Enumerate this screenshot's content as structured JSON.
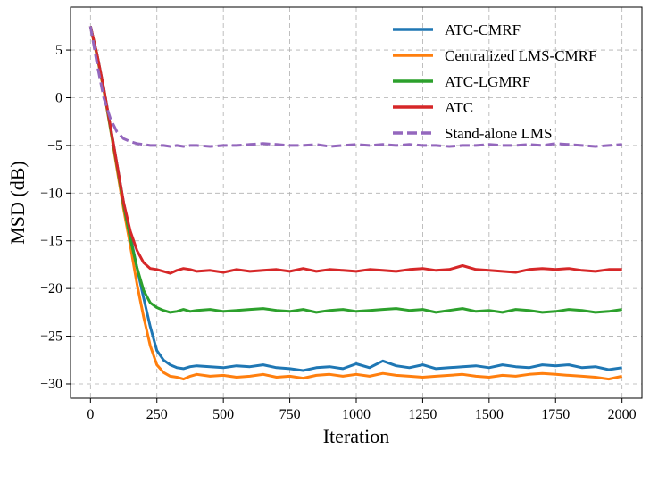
{
  "chart_data": {
    "type": "line",
    "title": "",
    "xlabel": "Iteration",
    "ylabel": "MSD (dB)",
    "xlim": [
      -75,
      2075
    ],
    "ylim": [
      -31.5,
      9.5
    ],
    "xticks": [
      0,
      250,
      500,
      750,
      1000,
      1250,
      1500,
      1750,
      2000
    ],
    "yticks": [
      5,
      0,
      -5,
      -10,
      -15,
      -20,
      -25,
      -30
    ],
    "ytick_labels": [
      "5",
      "0",
      "−5",
      "−10",
      "−15",
      "−20",
      "−25",
      "−30"
    ],
    "grid": true,
    "legend_position": "top-right",
    "series": [
      {
        "name": "ATC-CMRF",
        "color": "#1f77b4",
        "dashed": false,
        "x": [
          0,
          25,
          50,
          75,
          100,
          125,
          150,
          175,
          200,
          225,
          250,
          275,
          300,
          325,
          350,
          375,
          400,
          450,
          500,
          550,
          600,
          650,
          700,
          750,
          800,
          850,
          900,
          950,
          1000,
          1050,
          1100,
          1150,
          1200,
          1250,
          1300,
          1350,
          1400,
          1450,
          1500,
          1550,
          1600,
          1650,
          1700,
          1750,
          1800,
          1850,
          1900,
          1950,
          2000
        ],
        "y": [
          7.5,
          4.5,
          1.0,
          -3.0,
          -7.0,
          -11.0,
          -14.5,
          -17.8,
          -21.0,
          -24.0,
          -26.5,
          -27.5,
          -28.0,
          -28.3,
          -28.4,
          -28.2,
          -28.1,
          -28.2,
          -28.3,
          -28.1,
          -28.2,
          -28.0,
          -28.3,
          -28.4,
          -28.6,
          -28.3,
          -28.2,
          -28.4,
          -27.9,
          -28.3,
          -27.6,
          -28.1,
          -28.3,
          -28.0,
          -28.4,
          -28.3,
          -28.2,
          -28.1,
          -28.3,
          -28.0,
          -28.2,
          -28.3,
          -28.0,
          -28.1,
          -28.0,
          -28.3,
          -28.2,
          -28.5,
          -28.3
        ]
      },
      {
        "name": "Centralized LMS-CMRF",
        "color": "#ff7f0e",
        "dashed": false,
        "x": [
          0,
          25,
          50,
          75,
          100,
          125,
          150,
          175,
          200,
          225,
          250,
          275,
          300,
          325,
          350,
          375,
          400,
          450,
          500,
          550,
          600,
          650,
          700,
          750,
          800,
          850,
          900,
          950,
          1000,
          1050,
          1100,
          1150,
          1200,
          1250,
          1300,
          1350,
          1400,
          1450,
          1500,
          1550,
          1600,
          1650,
          1700,
          1750,
          1800,
          1850,
          1900,
          1950,
          2000
        ],
        "y": [
          7.5,
          4.3,
          0.8,
          -3.3,
          -7.5,
          -11.7,
          -15.5,
          -19.5,
          -23.0,
          -26.0,
          -28.0,
          -28.8,
          -29.2,
          -29.3,
          -29.5,
          -29.2,
          -29.0,
          -29.2,
          -29.1,
          -29.3,
          -29.2,
          -29.0,
          -29.3,
          -29.2,
          -29.4,
          -29.1,
          -29.0,
          -29.2,
          -29.0,
          -29.2,
          -28.9,
          -29.1,
          -29.2,
          -29.3,
          -29.2,
          -29.1,
          -29.0,
          -29.2,
          -29.3,
          -29.1,
          -29.2,
          -29.0,
          -28.9,
          -29.0,
          -29.1,
          -29.2,
          -29.3,
          -29.5,
          -29.2
        ]
      },
      {
        "name": "ATC-LGMRF",
        "color": "#2ca02c",
        "dashed": false,
        "x": [
          0,
          25,
          50,
          75,
          100,
          125,
          150,
          175,
          200,
          225,
          250,
          275,
          300,
          325,
          350,
          375,
          400,
          450,
          500,
          550,
          600,
          650,
          700,
          750,
          800,
          850,
          900,
          950,
          1000,
          1050,
          1100,
          1150,
          1200,
          1250,
          1300,
          1350,
          1400,
          1450,
          1500,
          1550,
          1600,
          1650,
          1700,
          1750,
          1800,
          1850,
          1900,
          1950,
          2000
        ],
        "y": [
          7.5,
          4.4,
          0.9,
          -3.2,
          -7.2,
          -11.3,
          -14.8,
          -17.8,
          -20.2,
          -21.5,
          -22.0,
          -22.3,
          -22.5,
          -22.4,
          -22.2,
          -22.4,
          -22.3,
          -22.2,
          -22.4,
          -22.3,
          -22.2,
          -22.1,
          -22.3,
          -22.4,
          -22.2,
          -22.5,
          -22.3,
          -22.2,
          -22.4,
          -22.3,
          -22.2,
          -22.1,
          -22.3,
          -22.2,
          -22.5,
          -22.3,
          -22.1,
          -22.4,
          -22.3,
          -22.5,
          -22.2,
          -22.3,
          -22.5,
          -22.4,
          -22.2,
          -22.3,
          -22.5,
          -22.4,
          -22.2
        ]
      },
      {
        "name": "ATC",
        "color": "#d62728",
        "dashed": false,
        "x": [
          0,
          25,
          50,
          75,
          100,
          125,
          150,
          175,
          200,
          225,
          250,
          275,
          300,
          325,
          350,
          375,
          400,
          450,
          500,
          550,
          600,
          650,
          700,
          750,
          800,
          850,
          900,
          950,
          1000,
          1050,
          1100,
          1150,
          1200,
          1250,
          1300,
          1350,
          1400,
          1450,
          1500,
          1550,
          1600,
          1650,
          1700,
          1750,
          1800,
          1850,
          1900,
          1950,
          2000
        ],
        "y": [
          7.5,
          4.5,
          1.0,
          -3.0,
          -7.0,
          -11.0,
          -14.0,
          -16.0,
          -17.3,
          -17.9,
          -18.0,
          -18.2,
          -18.4,
          -18.1,
          -17.9,
          -18.0,
          -18.2,
          -18.1,
          -18.3,
          -18.0,
          -18.2,
          -18.1,
          -18.0,
          -18.2,
          -17.9,
          -18.2,
          -18.0,
          -18.1,
          -18.2,
          -18.0,
          -18.1,
          -18.2,
          -18.0,
          -17.9,
          -18.1,
          -18.0,
          -17.6,
          -18.0,
          -18.1,
          -18.2,
          -18.3,
          -18.0,
          -17.9,
          -18.0,
          -17.9,
          -18.1,
          -18.2,
          -18.0,
          -18.0
        ]
      },
      {
        "name": "Stand-alone LMS",
        "color": "#9467bd",
        "dashed": true,
        "x": [
          0,
          25,
          50,
          75,
          100,
          125,
          150,
          175,
          200,
          225,
          250,
          275,
          300,
          325,
          350,
          375,
          400,
          450,
          500,
          550,
          600,
          650,
          700,
          750,
          800,
          850,
          900,
          950,
          1000,
          1050,
          1100,
          1150,
          1200,
          1250,
          1300,
          1350,
          1400,
          1450,
          1500,
          1550,
          1600,
          1650,
          1700,
          1750,
          1800,
          1850,
          1900,
          1950,
          2000
        ],
        "y": [
          7.5,
          3.5,
          0.0,
          -2.2,
          -3.6,
          -4.3,
          -4.6,
          -4.8,
          -4.9,
          -5.0,
          -5.0,
          -5.0,
          -5.1,
          -5.0,
          -5.1,
          -5.0,
          -5.0,
          -5.1,
          -5.0,
          -5.0,
          -4.9,
          -4.8,
          -4.9,
          -5.0,
          -5.0,
          -4.9,
          -5.1,
          -5.0,
          -4.9,
          -5.0,
          -4.9,
          -5.0,
          -4.9,
          -5.0,
          -5.0,
          -5.1,
          -5.0,
          -5.0,
          -4.9,
          -5.0,
          -5.0,
          -4.9,
          -5.0,
          -4.8,
          -4.9,
          -5.0,
          -5.1,
          -5.0,
          -4.9
        ]
      }
    ]
  }
}
